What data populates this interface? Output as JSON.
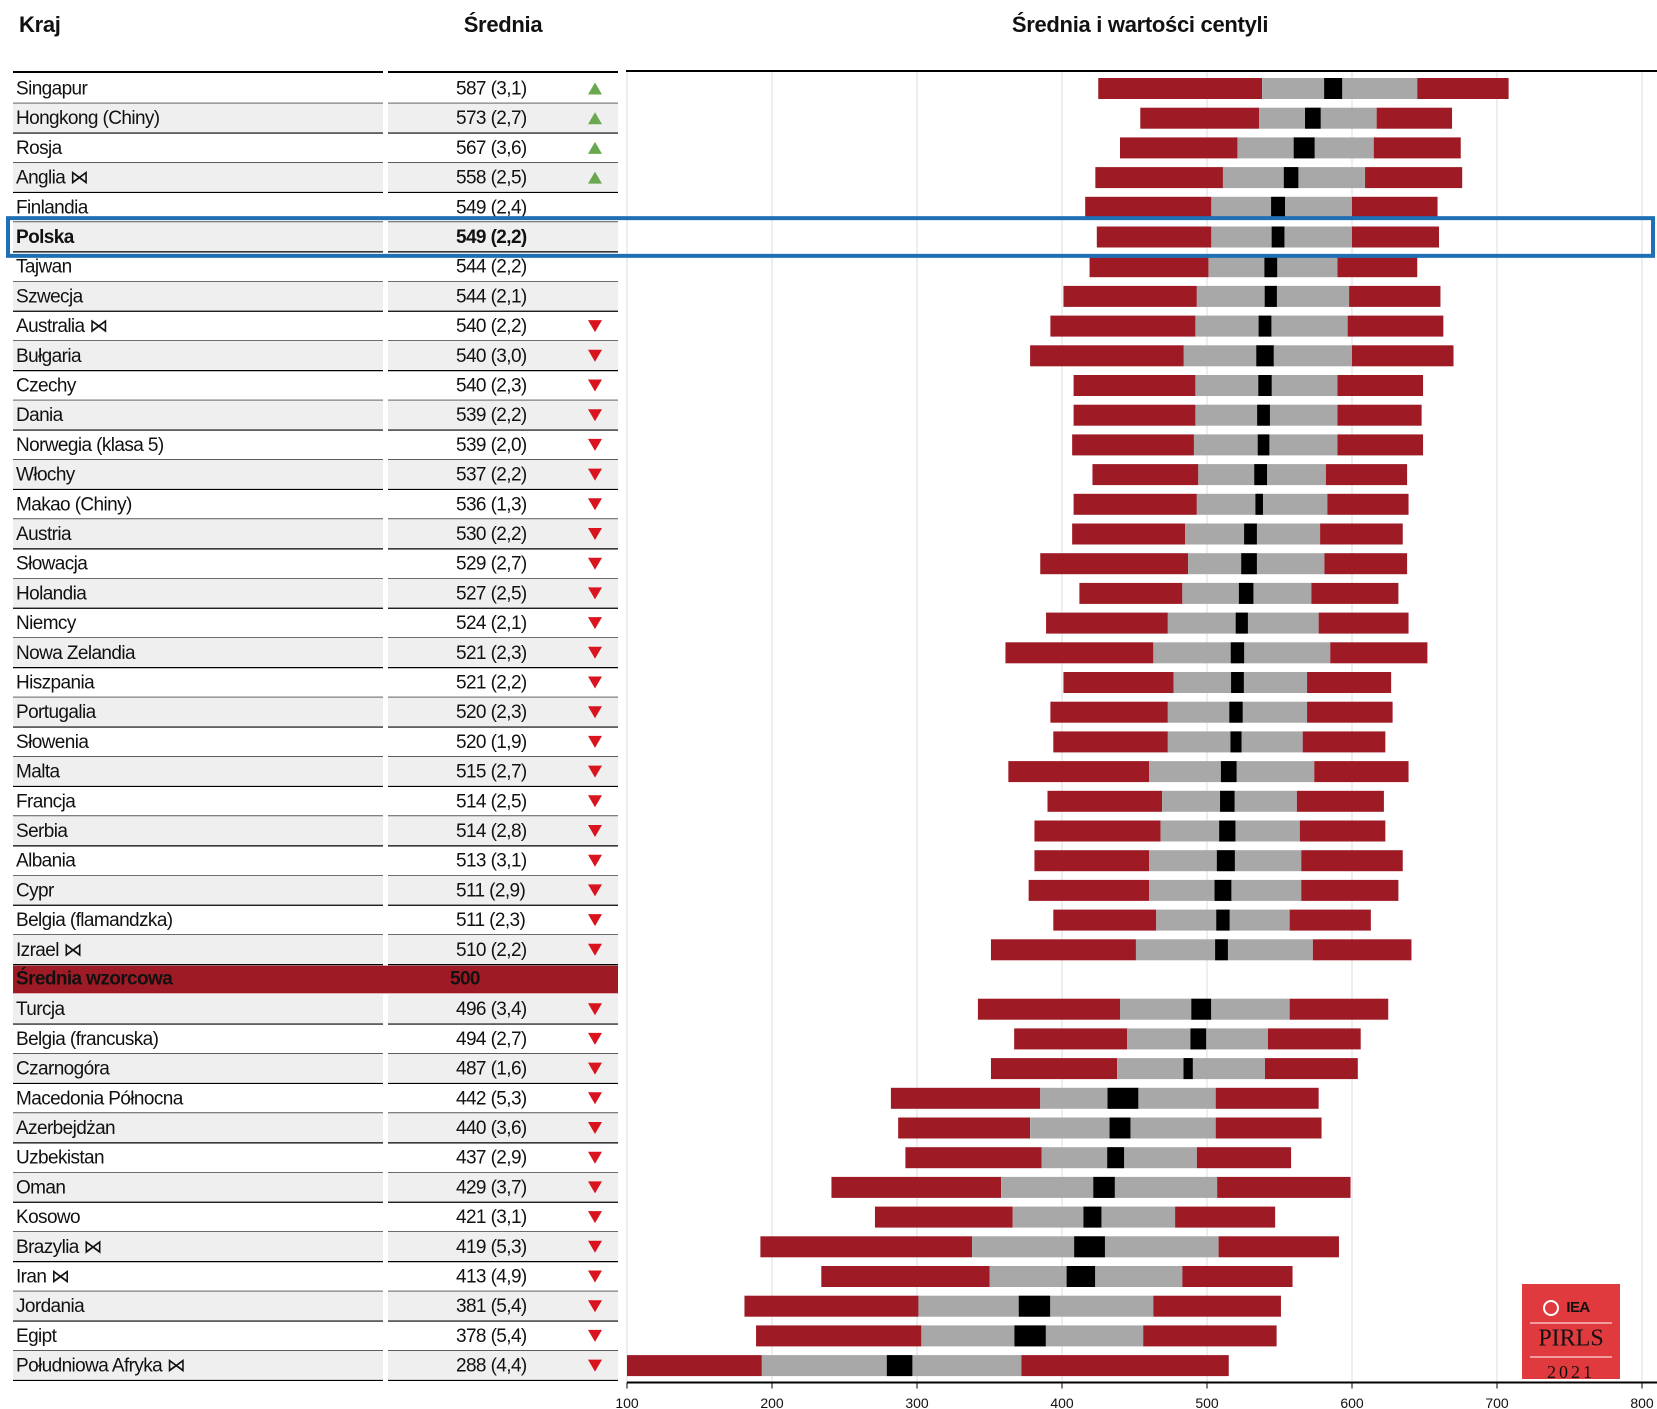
{
  "chart_data": {
    "type": "percentile",
    "title": "Średnia i wartości centyli",
    "column_country": "Kraj",
    "column_mean": "Średnia",
    "categories": [
      "Singapur",
      "Hongkong (Chiny)",
      "Rosja",
      "Anglia ⋈",
      "Finlandia",
      "Polska",
      "Tajwan",
      "Szwecja",
      "Australia ⋈",
      "Bułgaria",
      "Czechy",
      "Dania",
      "Norwegia (klasa 5)",
      "Włochy",
      "Makao (Chiny)",
      "Austria",
      "Słowacja",
      "Holandia",
      "Niemcy",
      "Nowa Zelandia",
      "Hiszpania",
      "Portugalia",
      "Słowenia",
      "Malta",
      "Francja",
      "Serbia",
      "Albania",
      "Cypr",
      "Belgia (flamandzka)",
      "Izrael ⋈",
      "Średnia wzorcowa",
      "Turcja",
      "Belgia (francuska)",
      "Czarnogóra",
      "Macedonia Północna",
      "Azerbejdżan",
      "Uzbekistan",
      "Oman",
      "Kosowo",
      "Brazylia ⋈",
      "Iran ⋈",
      "Jordania",
      "Egipt",
      "Południowa Afryka ⋈"
    ],
    "means": [
      587,
      573,
      567,
      558,
      549,
      549,
      544,
      544,
      540,
      540,
      540,
      539,
      539,
      537,
      536,
      530,
      529,
      527,
      524,
      521,
      521,
      520,
      520,
      515,
      514,
      514,
      513,
      511,
      511,
      510,
      500,
      496,
      494,
      487,
      442,
      440,
      437,
      429,
      421,
      419,
      413,
      381,
      378,
      288
    ],
    "se": [
      3.1,
      2.7,
      3.6,
      2.5,
      2.4,
      2.2,
      2.2,
      2.1,
      2.2,
      3.0,
      2.3,
      2.2,
      2.0,
      2.2,
      1.3,
      2.2,
      2.7,
      2.5,
      2.1,
      2.3,
      2.2,
      2.3,
      1.9,
      2.7,
      2.5,
      2.8,
      3.1,
      2.9,
      2.3,
      2.2,
      null,
      3.4,
      2.7,
      1.6,
      5.3,
      3.6,
      2.9,
      3.7,
      3.1,
      5.3,
      4.9,
      5.4,
      5.4,
      4.4
    ],
    "mean_labels": [
      "587 (3,1)",
      "573 (2,7)",
      "567 (3,6)",
      "558 (2,5)",
      "549 (2,4)",
      "549 (2,2)",
      "544 (2,2)",
      "544 (2,1)",
      "540 (2,2)",
      "540 (3,0)",
      "540 (2,3)",
      "539 (2,2)",
      "539 (2,0)",
      "537 (2,2)",
      "536 (1,3)",
      "530 (2,2)",
      "529 (2,7)",
      "527 (2,5)",
      "524 (2,1)",
      "521 (2,3)",
      "521 (2,2)",
      "520 (2,3)",
      "520 (1,9)",
      "515 (2,7)",
      "514 (2,5)",
      "514 (2,8)",
      "513 (3,1)",
      "511 (2,9)",
      "511 (2,3)",
      "510 (2,2)",
      "500",
      "496 (3,4)",
      "494 (2,7)",
      "487 (1,6)",
      "442 (5,3)",
      "440 (3,6)",
      "437 (2,9)",
      "429 (3,7)",
      "421 (3,1)",
      "419 (5,3)",
      "413 (4,9)",
      "381 (5,4)",
      "378 (5,4)",
      "288 (4,4)"
    ],
    "trends": [
      "up",
      "up",
      "up",
      "up",
      null,
      null,
      null,
      null,
      "down",
      "down",
      "down",
      "down",
      "down",
      "down",
      "down",
      "down",
      "down",
      "down",
      "down",
      "down",
      "down",
      "down",
      "down",
      "down",
      "down",
      "down",
      "down",
      "down",
      "down",
      "down",
      null,
      "down",
      "down",
      "down",
      "down",
      "down",
      "down",
      "down",
      "down",
      "down",
      "down",
      "down",
      "down",
      "down"
    ],
    "p5": [
      425,
      454,
      440,
      423,
      416,
      424,
      419,
      401,
      392,
      378,
      408,
      408,
      407,
      421,
      408,
      407,
      385,
      412,
      389,
      361,
      401,
      392,
      394,
      363,
      390,
      381,
      381,
      377,
      394,
      351,
      null,
      342,
      367,
      351,
      282,
      287,
      292,
      241,
      271,
      192,
      234,
      181,
      189,
      100
    ],
    "p25": [
      538,
      536,
      521,
      511,
      503,
      503,
      501,
      493,
      492,
      484,
      492,
      492,
      491,
      494,
      493,
      485,
      487,
      483,
      473,
      463,
      477,
      473,
      473,
      460,
      469,
      468,
      460,
      460,
      465,
      451,
      null,
      440,
      445,
      438,
      385,
      378,
      386,
      358,
      366,
      338,
      350,
      301,
      303,
      193
    ],
    "p75": [
      645,
      617,
      615,
      609,
      600,
      600,
      590,
      598,
      597,
      600,
      590,
      590,
      590,
      582,
      583,
      578,
      581,
      572,
      577,
      585,
      569,
      569,
      566,
      574,
      562,
      564,
      565,
      565,
      557,
      573,
      null,
      557,
      542,
      540,
      506,
      506,
      493,
      507,
      478,
      508,
      483,
      463,
      456,
      372
    ],
    "p95": [
      708,
      669,
      675,
      676,
      659,
      660,
      645,
      661,
      663,
      670,
      649,
      648,
      649,
      638,
      639,
      635,
      638,
      632,
      639,
      652,
      627,
      628,
      623,
      639,
      622,
      623,
      635,
      632,
      613,
      641,
      null,
      625,
      606,
      604,
      577,
      579,
      558,
      599,
      547,
      591,
      559,
      551,
      548,
      515
    ],
    "highlight": "Polska",
    "reference": "Średnia wzorcowa",
    "colors": {
      "tails": "#9e1b26",
      "middle": "#a8a8a8",
      "mean": "#000000",
      "up": "#6aa84f",
      "down": "#d9141e",
      "highlight": "#1f6fb5"
    },
    "xlim": [
      100,
      800
    ],
    "xticks": [
      100,
      200,
      300,
      400,
      500,
      600,
      700,
      800
    ],
    "grid": true,
    "logo": {
      "org": "IEA",
      "study": "PIRLS",
      "year": "2021"
    }
  }
}
